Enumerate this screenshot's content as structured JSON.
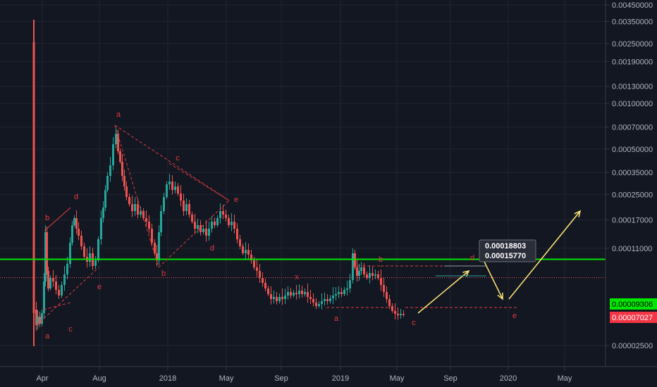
{
  "chart_data": {
    "type": "candlestick",
    "scale": "log",
    "grid": true,
    "ylim": [
      1.8e-05,
      0.0045
    ],
    "y_ticks": [
      "0.00450000",
      "0.00350000",
      "0.00250000",
      "0.00190000",
      "0.00130000",
      "0.00100000",
      "0.00070000",
      "0.00050000",
      "0.00035000",
      "0.00025000",
      "0.00017000",
      "0.00011000",
      "0.00002500"
    ],
    "x_ticks": [
      "Apr",
      "Aug",
      "2018",
      "May",
      "Sep",
      "2019",
      "May",
      "Sep",
      "2020",
      "May"
    ],
    "price_tags": [
      {
        "value": "0.00009306",
        "color": "#00e600",
        "text_color": "#000000"
      },
      {
        "value": "0.00007027",
        "color": "#f23645",
        "text_color": "#ffffff"
      }
    ],
    "callouts": [
      "0.00018803",
      "0.00015770"
    ],
    "wave_labels": {
      "left": [
        "a",
        "b",
        "c",
        "d",
        "e"
      ],
      "top": [
        "a",
        "b",
        "c",
        "d",
        "e"
      ],
      "mid": [
        "x"
      ],
      "right": [
        "a",
        "b",
        "c"
      ],
      "projection": [
        "d",
        "e"
      ]
    },
    "colors": {
      "up": "#26a69a",
      "down": "#ef5350",
      "support": "#00e600",
      "projection": "#ffe675",
      "wave": "#e03c3c"
    }
  }
}
